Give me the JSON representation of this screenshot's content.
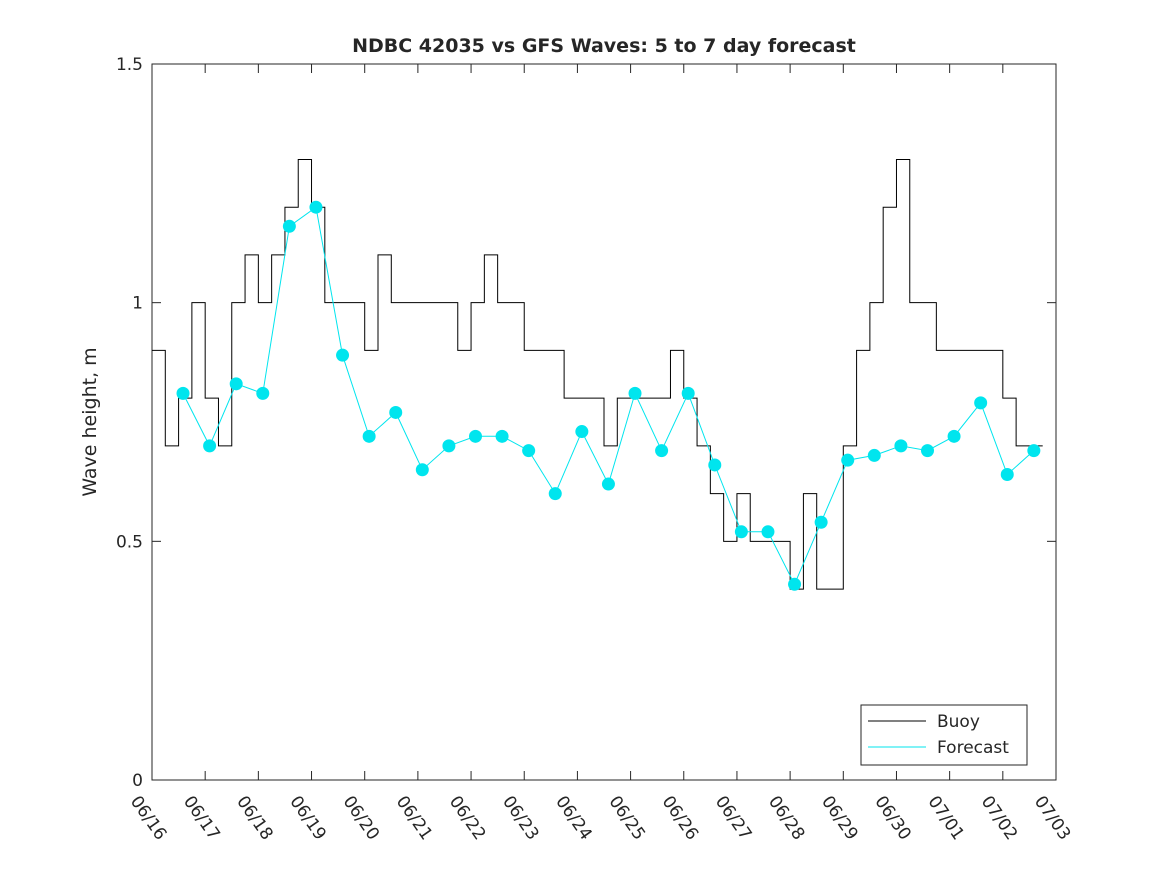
{
  "chart_data": {
    "type": "line",
    "title": "NDBC 42035 vs GFS Waves: 5 to 7 day forecast",
    "xlabel": "",
    "ylabel": "Wave height, m",
    "xlim": [
      "06/16",
      "07/03"
    ],
    "ylim": [
      0,
      1.5
    ],
    "xtick_labels": [
      "06/16",
      "06/17",
      "06/18",
      "06/19",
      "06/20",
      "06/21",
      "06/22",
      "06/23",
      "06/24",
      "06/25",
      "06/26",
      "06/27",
      "06/28",
      "06/29",
      "06/30",
      "07/01",
      "07/02",
      "07/03"
    ],
    "ytick_labels": [
      "0",
      "0.5",
      "1",
      "1.5"
    ],
    "ytick_values": [
      0,
      0.5,
      1,
      1.5
    ],
    "grid": false,
    "legend_position": "bottom-right",
    "series": [
      {
        "name": "Buoy",
        "color": "#000000",
        "x": [
          "06/16 00:00",
          "06/16 06:00",
          "06/16 12:00",
          "06/16 18:00",
          "06/17 00:00",
          "06/17 06:00",
          "06/17 12:00",
          "06/17 18:00",
          "06/18 00:00",
          "06/18 06:00",
          "06/18 12:00",
          "06/18 18:00",
          "06/19 00:00",
          "06/19 06:00",
          "06/19 12:00",
          "06/19 18:00",
          "06/20 00:00",
          "06/20 06:00",
          "06/20 12:00",
          "06/20 18:00",
          "06/21 00:00",
          "06/21 06:00",
          "06/21 12:00",
          "06/21 18:00",
          "06/22 00:00",
          "06/22 06:00",
          "06/22 12:00",
          "06/22 18:00",
          "06/23 00:00",
          "06/23 06:00",
          "06/23 12:00",
          "06/23 18:00",
          "06/24 00:00",
          "06/24 06:00",
          "06/24 12:00",
          "06/24 18:00",
          "06/25 00:00",
          "06/25 06:00",
          "06/25 12:00",
          "06/25 18:00",
          "06/26 00:00",
          "06/26 06:00",
          "06/26 12:00",
          "06/26 18:00",
          "06/27 00:00",
          "06/27 06:00",
          "06/27 12:00",
          "06/27 18:00",
          "06/28 00:00",
          "06/28 06:00",
          "06/28 12:00",
          "06/28 18:00",
          "06/29 00:00",
          "06/29 06:00",
          "06/29 12:00",
          "06/29 18:00",
          "06/30 00:00",
          "06/30 06:00",
          "06/30 12:00",
          "06/30 18:00",
          "07/01 00:00",
          "07/01 06:00",
          "07/01 12:00",
          "07/01 18:00",
          "07/02 00:00",
          "07/02 06:00",
          "07/02 12:00",
          "07/02 18:00"
        ],
        "values": [
          0.9,
          0.7,
          0.8,
          1.0,
          0.8,
          0.7,
          1.0,
          1.1,
          1.0,
          1.1,
          1.2,
          1.3,
          1.2,
          1.0,
          1.0,
          1.0,
          0.9,
          1.1,
          1.0,
          1.0,
          1.0,
          1.0,
          1.0,
          0.9,
          1.0,
          1.1,
          1.0,
          1.0,
          0.9,
          0.9,
          0.9,
          0.8,
          0.8,
          0.8,
          0.7,
          0.8,
          0.8,
          0.8,
          0.8,
          0.9,
          0.8,
          0.7,
          0.6,
          0.5,
          0.6,
          0.5,
          0.5,
          0.5,
          0.4,
          0.6,
          0.4,
          0.4,
          0.7,
          0.9,
          1.0,
          1.2,
          1.3,
          1.0,
          1.0,
          0.9,
          0.9,
          0.9,
          0.9,
          0.9,
          0.8,
          0.7,
          0.7,
          0.7
        ]
      },
      {
        "name": "Forecast",
        "color": "#00e5ee",
        "x": [
          "06/16 14:00",
          "06/17 02:00",
          "06/17 14:00",
          "06/18 02:00",
          "06/18 14:00",
          "06/19 02:00",
          "06/19 14:00",
          "06/20 02:00",
          "06/20 14:00",
          "06/21 02:00",
          "06/21 14:00",
          "06/22 02:00",
          "06/22 14:00",
          "06/23 02:00",
          "06/23 14:00",
          "06/24 02:00",
          "06/24 14:00",
          "06/25 02:00",
          "06/25 14:00",
          "06/26 02:00",
          "06/26 14:00",
          "06/27 02:00",
          "06/27 14:00",
          "06/28 02:00",
          "06/28 14:00",
          "06/29 02:00",
          "06/29 14:00",
          "06/30 02:00",
          "06/30 14:00",
          "07/01 02:00",
          "07/01 14:00",
          "07/02 02:00",
          "07/02 14:00"
        ],
        "values": [
          0.81,
          0.7,
          0.83,
          0.81,
          1.16,
          1.2,
          0.89,
          0.72,
          0.77,
          0.65,
          0.7,
          0.72,
          0.72,
          0.69,
          0.6,
          0.73,
          0.62,
          0.81,
          0.69,
          0.81,
          0.66,
          0.52,
          0.52,
          0.41,
          0.54,
          0.67,
          0.68,
          0.7,
          0.69,
          0.72,
          0.79,
          0.64,
          0.69
        ]
      }
    ]
  }
}
